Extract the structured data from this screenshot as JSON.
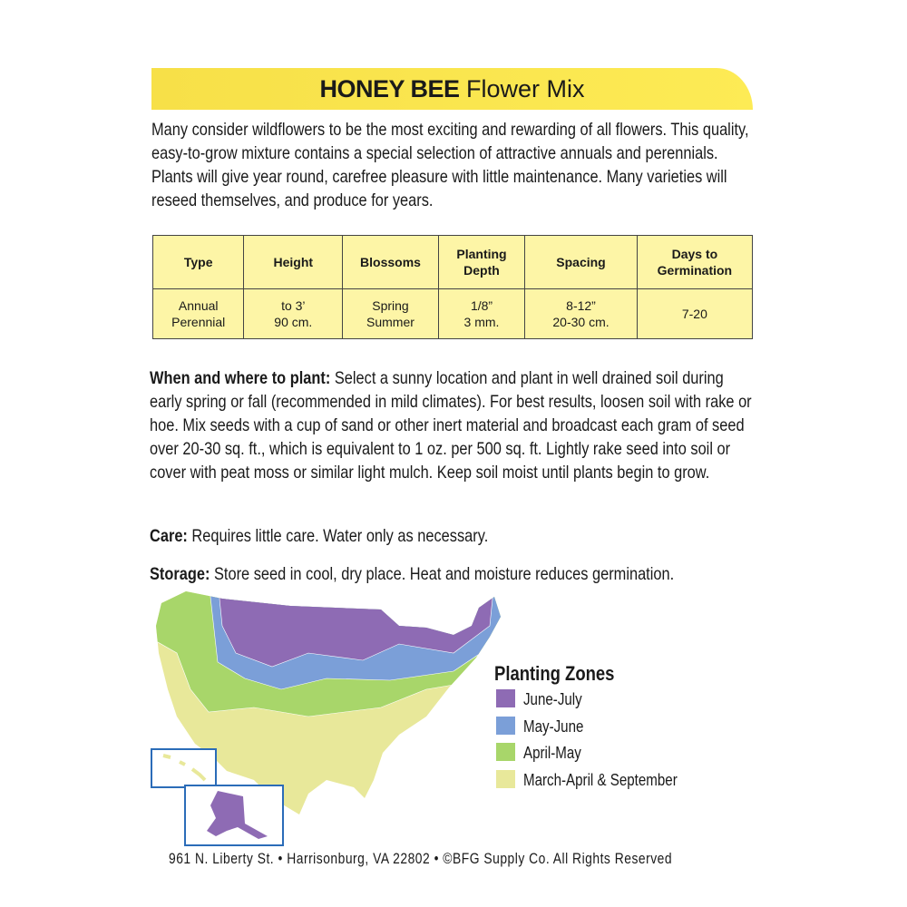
{
  "header": {
    "brand": "HONEY BEE",
    "title": "Flower Mix"
  },
  "intro": "Many consider wildflowers to be the most exciting and rewarding of all flowers. This quality, easy-to-grow mixture contains a special selection of attractive annuals and perennials. Plants will give year round, carefree pleasure with little maintenance. Many varieties will reseed themselves, and produce for years.",
  "table": {
    "headers": [
      "Type",
      "Height",
      "Blossoms",
      "Planting\nDepth",
      "Spacing",
      "Days to\nGermination"
    ],
    "rows": [
      [
        "Annual\nPerennial",
        "to 3’\n90 cm.",
        "Spring\nSummer",
        "1/8”\n3 mm.",
        "8-12”\n20-30 cm.",
        "7-20"
      ]
    ]
  },
  "sections": [
    {
      "label": "When and where to plant:",
      "text": "Select a sunny location and plant in well drained soil during early spring or fall (recommended in mild climates). For best results, loosen soil with rake or hoe. Mix seeds with a cup of sand or other inert material and broadcast each gram of seed over 20-30 sq. ft., which is equivalent to 1 oz. per 500 sq. ft. Lightly rake seed into soil or cover with peat moss or similar light mulch. Keep soil moist until plants begin to grow."
    },
    {
      "label": "Care:",
      "text": "Requires little care. Water only as necessary."
    },
    {
      "label": "Storage:",
      "text": "Store seed in cool, dry place. Heat and moisture reduces germination."
    }
  ],
  "legend": {
    "title": "Planting Zones",
    "items": [
      {
        "name": "June-July",
        "color": "#8e6bb4"
      },
      {
        "name": "May-June",
        "color": "#7b9fd8"
      },
      {
        "name": "April-May",
        "color": "#a8d66a"
      },
      {
        "name": "March-April & September",
        "color": "#e8e89a"
      }
    ]
  },
  "footer": "961 N. Liberty St. • Harrisonburg, VA 22802 • ©BFG Supply Co. All Rights Reserved"
}
